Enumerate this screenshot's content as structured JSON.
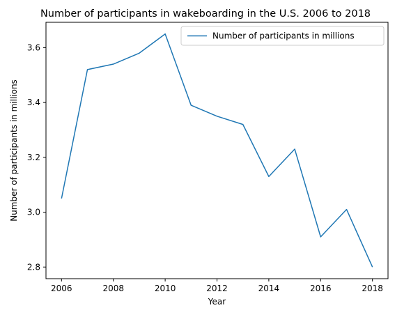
{
  "chart_data": {
    "type": "line",
    "title": "Number of participants in wakeboarding in the U.S. 2006 to 2018",
    "xlabel": "Year",
    "ylabel": "Number of participants in millions",
    "x": [
      2006,
      2007,
      2008,
      2009,
      2010,
      2011,
      2012,
      2013,
      2014,
      2015,
      2016,
      2017,
      2018
    ],
    "series": [
      {
        "name": "Number of participants in millions",
        "color": "#1f77b4",
        "values": [
          3.05,
          3.52,
          3.54,
          3.58,
          3.65,
          3.39,
          3.35,
          3.32,
          3.13,
          3.23,
          2.91,
          3.01,
          2.8
        ]
      }
    ],
    "xlim": [
      2005.4,
      2018.6
    ],
    "ylim": [
      2.7575,
      3.6925
    ],
    "xticks": [
      "2006",
      "2008",
      "2010",
      "2012",
      "2014",
      "2016",
      "2018"
    ],
    "yticks": [
      "2.8",
      "3.0",
      "3.2",
      "3.4",
      "3.6"
    ],
    "legend": "upper right",
    "grid": false
  }
}
